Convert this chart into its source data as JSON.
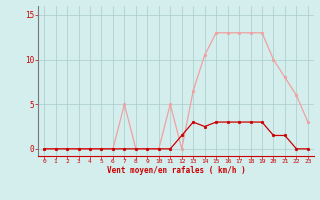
{
  "x": [
    0,
    1,
    2,
    3,
    4,
    5,
    6,
    7,
    8,
    9,
    10,
    11,
    12,
    13,
    14,
    15,
    16,
    17,
    18,
    19,
    20,
    21,
    22,
    23
  ],
  "rafales": [
    0,
    0,
    0,
    0,
    0,
    0,
    0,
    5,
    0,
    0,
    0,
    5,
    0,
    6.5,
    10.5,
    13,
    13,
    13,
    13,
    13,
    10,
    8,
    6,
    3
  ],
  "moyen": [
    0,
    0,
    0,
    0,
    0,
    0,
    0,
    0,
    0,
    0,
    0,
    0,
    1.5,
    3,
    2.5,
    3,
    3,
    3,
    3,
    3,
    1.5,
    1.5,
    0,
    0
  ],
  "color_rafales": "#f0a0a0",
  "color_moyen": "#cc0000",
  "bg_color": "#d4eeee",
  "grid_color": "#aacccc",
  "axis_label_color": "#cc0000",
  "tick_color": "#cc0000",
  "xlabel": "Vent moyen/en rafales ( km/h )",
  "ylim": [
    -0.8,
    16
  ],
  "yticks": [
    0,
    5,
    10,
    15
  ],
  "xticks": [
    0,
    1,
    2,
    3,
    4,
    5,
    6,
    7,
    8,
    9,
    10,
    11,
    12,
    13,
    14,
    15,
    16,
    17,
    18,
    19,
    20,
    21,
    22,
    23
  ]
}
